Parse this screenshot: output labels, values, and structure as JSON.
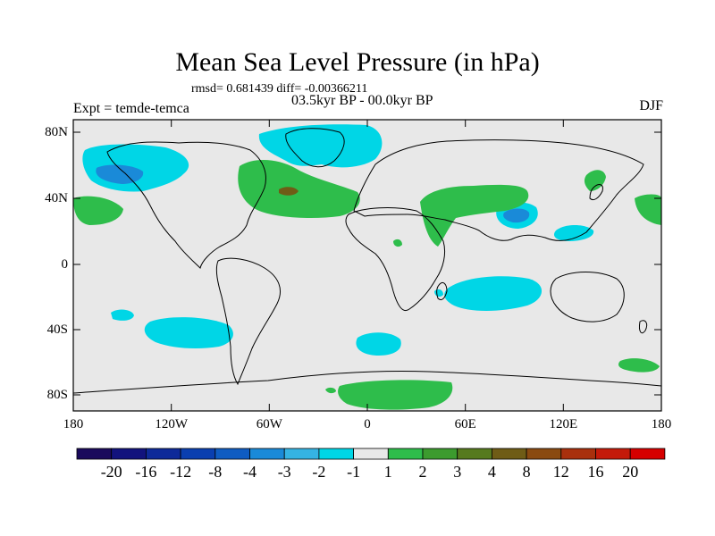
{
  "title": "Mean Sea Level Pressure (in hPa)",
  "stats": {
    "text": "rmsd= 0.681439 diff= -0.00366211"
  },
  "period": "03.5kyr BP - 00.0kyr BP",
  "experiment": "Expt = temde-temca",
  "season": "DJF",
  "lat_ticks": [
    "80N",
    "40N",
    "0",
    "40S",
    "80S"
  ],
  "lon_ticks": [
    "180",
    "120W",
    "60W",
    "0",
    "60E",
    "120E",
    "180"
  ],
  "colorbar": {
    "labels": [
      "-20",
      "-16",
      "-12",
      "-8",
      "-4",
      "-3",
      "-2",
      "-1",
      "1",
      "2",
      "3",
      "4",
      "8",
      "12",
      "16",
      "20"
    ],
    "colors": [
      "#1a0a5c",
      "#12137d",
      "#0e2a99",
      "#0a3fb0",
      "#0f5cc2",
      "#1a8ad8",
      "#35b3e3",
      "#00d6e6",
      "#e8e8e8",
      "#2ebd4b",
      "#3c9b2e",
      "#567a1e",
      "#6f5c16",
      "#8a4a10",
      "#a9300d",
      "#c41a0a",
      "#d60000"
    ]
  },
  "map": {
    "background": "#e8e8e8",
    "negative_color": "#00d6e6",
    "strong_negative_color": "#1a8ad8",
    "positive_color": "#2ebd4b",
    "strong_positive_color": "#6f5c16"
  }
}
